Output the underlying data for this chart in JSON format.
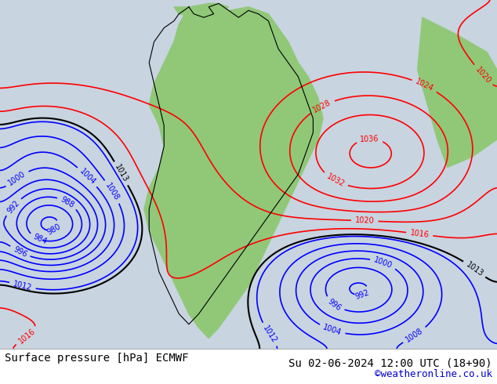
{
  "title_left": "Surface pressure [hPa] ECMWF",
  "title_right": "Su 02-06-2024 12:00 UTC (18+90)",
  "title_right2": "©weatheronline.co.uk",
  "bg_color": "#d0d8e8",
  "land_color": "#90c878",
  "figsize": [
    6.34,
    4.9
  ],
  "dpi": 100,
  "bottom_text_color": "#000000",
  "copyright_color": "#0000cc",
  "font_size_bottom": 10,
  "font_size_copyright": 9
}
